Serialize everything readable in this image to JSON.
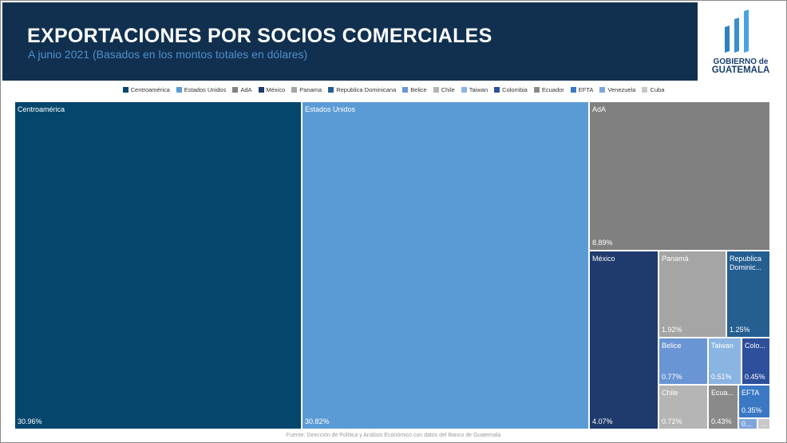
{
  "header": {
    "title": "EXPORTACIONES POR SOCIOS COMERCIALES",
    "subtitle": "A junio 2021 (Basados en los montos totales en dólares)"
  },
  "logo": {
    "line1": "GOBIERNO de",
    "line2": "GUATEMALA"
  },
  "footer": {
    "source": "Fuente: Dirección de Política y Análisis Económico con datos del Banco de Guatemala"
  },
  "chart_data": {
    "type": "treemap",
    "title": "EXPORTACIONES POR SOCIOS COMERCIALES",
    "subtitle": "A junio 2021 (Basados en los montos totales en dólares)",
    "legend_position": "top-center",
    "legend": [
      {
        "name": "Centroamérica",
        "color": "#05476c"
      },
      {
        "name": "Estados Unidos",
        "color": "#5b9bd5"
      },
      {
        "name": "AdA",
        "color": "#808080"
      },
      {
        "name": "México",
        "color": "#1f3a6c"
      },
      {
        "name": "Panama",
        "color": "#a5a5a5"
      },
      {
        "name": "Republica Dominicana",
        "color": "#255e91"
      },
      {
        "name": "Belice",
        "color": "#6a95d4"
      },
      {
        "name": "Chile",
        "color": "#b5b5b5"
      },
      {
        "name": "Taiwan",
        "color": "#8ab4e2"
      },
      {
        "name": "Colombia",
        "color": "#2e4f9b"
      },
      {
        "name": "Ecuador",
        "color": "#8a8a8a"
      },
      {
        "name": "EFTA",
        "color": "#3b78c4"
      },
      {
        "name": "Venezuela",
        "color": "#7fa6dc"
      },
      {
        "name": "Cuba",
        "color": "#c8c8c8"
      }
    ],
    "cells": [
      {
        "name": "Centroamérica",
        "label": "Centroamérica",
        "value": 30.96,
        "value_label": "30.96%",
        "color": "#05476c"
      },
      {
        "name": "Estados Unidos",
        "label": "Estados Unidos",
        "value": 30.82,
        "value_label": "30.82%",
        "color": "#5b9bd5"
      },
      {
        "name": "AdA",
        "label": "AdA",
        "value": 8.89,
        "value_label": "8.89%",
        "color": "#808080"
      },
      {
        "name": "México",
        "label": "México",
        "value": 4.07,
        "value_label": "4.07%",
        "color": "#1f3a6c"
      },
      {
        "name": "Panama",
        "label": "Panamá",
        "value": 1.92,
        "value_label": "1.92%",
        "color": "#a5a5a5"
      },
      {
        "name": "Republica Dominicana",
        "label": "Republica Dominic...",
        "value": 1.25,
        "value_label": "1.25%",
        "color": "#255e91"
      },
      {
        "name": "Belice",
        "label": "Belice",
        "value": 0.77,
        "value_label": "0.77%",
        "color": "#6a95d4"
      },
      {
        "name": "Taiwan",
        "label": "Taiwan",
        "value": 0.51,
        "value_label": "0.51%",
        "color": "#8ab4e2"
      },
      {
        "name": "Colombia",
        "label": "Colo...",
        "value": 0.45,
        "value_label": "0.45%",
        "color": "#2e4f9b"
      },
      {
        "name": "Chile",
        "label": "Chile",
        "value": 0.72,
        "value_label": "0.72%",
        "color": "#b5b5b5"
      },
      {
        "name": "Ecuador",
        "label": "Ecua...",
        "value": 0.43,
        "value_label": "0.43%",
        "color": "#8a8a8a"
      },
      {
        "name": "EFTA",
        "label": "EFTA",
        "value": 0.35,
        "value_label": "0.35%",
        "color": "#3b78c4"
      },
      {
        "name": "Venezuela",
        "label": "0...",
        "value": 0.2,
        "value_label": "",
        "color": "#7fa6dc"
      },
      {
        "name": "Cuba",
        "label": "...",
        "value": 0.12,
        "value_label": "",
        "color": "#c8c8c8"
      }
    ]
  }
}
